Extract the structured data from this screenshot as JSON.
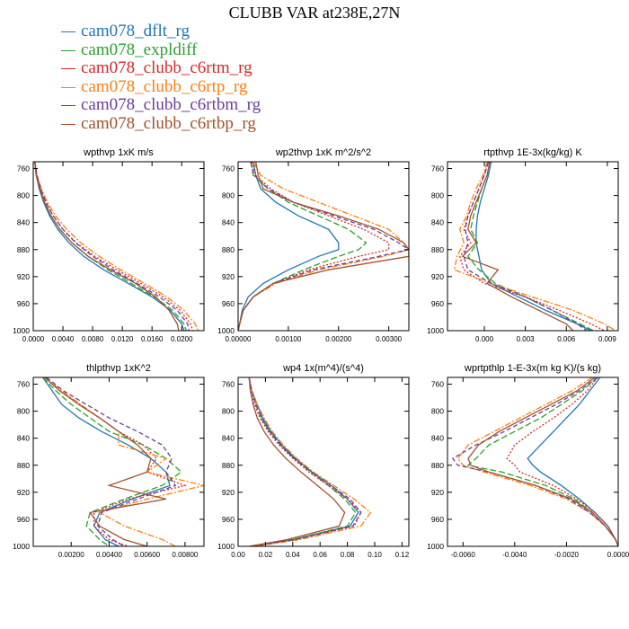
{
  "title": "CLUBB VAR at238E,27N",
  "legend": [
    {
      "name": "cam078_dflt_rg",
      "color": "#1f77b4",
      "dash": "none"
    },
    {
      "name": "cam078_expldiff",
      "color": "#2ca02c",
      "dash": "7 3"
    },
    {
      "name": "cam078_clubb_c6rtm_rg",
      "color": "#d62728",
      "dash": "2 2"
    },
    {
      "name": "cam078_clubb_c6rtp_rg",
      "color": "#ff7f0e",
      "dash": "7 2 2 2"
    },
    {
      "name": "cam078_clubb_c6rtbm_rg",
      "color": "#6a3d9a",
      "dash": "5 3"
    },
    {
      "name": "cam078_clubb_c6rtbp_rg",
      "color": "#a0522d",
      "dash": "none"
    }
  ],
  "chart_data": [
    {
      "type": "line",
      "title": "wpthvp  1xK m/s",
      "xlim": [
        0,
        0.023
      ],
      "ylim": [
        1000,
        750
      ],
      "xticks": [
        0,
        0.004,
        0.008,
        0.012,
        0.016,
        0.02
      ],
      "xticklabels": [
        "0.0000",
        "0.0040",
        "0.0080",
        "0.0120",
        "0.0160",
        "0.0200"
      ],
      "yticks": [
        760,
        800,
        840,
        880,
        920,
        960,
        1000
      ],
      "y": [
        750,
        770,
        790,
        810,
        830,
        850,
        870,
        890,
        910,
        930,
        950,
        970,
        990,
        1000
      ],
      "series": [
        {
          "name": "cam078_dflt_rg",
          "values": [
            0.0002,
            0.0004,
            0.0008,
            0.0014,
            0.0022,
            0.0033,
            0.0048,
            0.0068,
            0.0095,
            0.0128,
            0.016,
            0.0185,
            0.02,
            0.0203
          ]
        },
        {
          "name": "cam078_expldiff",
          "values": [
            0.0002,
            0.0004,
            0.0009,
            0.0015,
            0.0024,
            0.0036,
            0.0052,
            0.0074,
            0.0101,
            0.0132,
            0.0163,
            0.0188,
            0.0203,
            0.0206
          ]
        },
        {
          "name": "cam078_clubb_c6rtm_rg",
          "values": [
            0.0002,
            0.0005,
            0.001,
            0.0017,
            0.0027,
            0.004,
            0.0058,
            0.0083,
            0.0113,
            0.0145,
            0.0175,
            0.0198,
            0.0212,
            0.0215
          ]
        },
        {
          "name": "cam078_clubb_c6rtp_rg",
          "values": [
            0.0002,
            0.0005,
            0.0011,
            0.0019,
            0.003,
            0.0045,
            0.0064,
            0.0089,
            0.0118,
            0.015,
            0.018,
            0.0203,
            0.0218,
            0.0222
          ]
        },
        {
          "name": "cam078_clubb_c6rtbm_rg",
          "values": [
            0.0002,
            0.0005,
            0.001,
            0.0017,
            0.0027,
            0.004,
            0.0057,
            0.008,
            0.0108,
            0.014,
            0.017,
            0.0194,
            0.0208,
            0.021
          ]
        },
        {
          "name": "cam078_clubb_c6rtbp_rg",
          "values": [
            0.0002,
            0.0004,
            0.0009,
            0.0015,
            0.0024,
            0.0036,
            0.0052,
            0.0074,
            0.0104,
            0.0138,
            0.0165,
            0.0183,
            0.0194,
            0.0196
          ]
        }
      ]
    },
    {
      "type": "line",
      "title": "wp2thvp  1xK m^2/s^2",
      "xlim": [
        0,
        0.0034
      ],
      "ylim": [
        1000,
        750
      ],
      "xticks": [
        0,
        0.001,
        0.002,
        0.003
      ],
      "xticklabels": [
        "0.00000",
        "0.00100",
        "0.00200",
        "0.00300"
      ],
      "yticks": [
        760,
        800,
        840,
        880,
        920,
        960,
        1000
      ],
      "y": [
        750,
        770,
        790,
        810,
        830,
        850,
        870,
        880,
        890,
        910,
        930,
        950,
        970,
        990,
        1000
      ],
      "series": [
        {
          "name": "cam078_dflt_rg",
          "values": [
            0.0003,
            0.00035,
            0.00045,
            0.00075,
            0.0012,
            0.0018,
            0.002,
            0.002,
            0.0016,
            0.001,
            0.0005,
            0.0002,
            8e-05,
            3e-05,
            0.0
          ]
        },
        {
          "name": "cam078_expldiff",
          "values": [
            0.00025,
            0.0003,
            0.0006,
            0.001,
            0.0016,
            0.0022,
            0.00255,
            0.0024,
            0.002,
            0.0013,
            0.0007,
            0.0003,
            0.0001,
            3e-05,
            0.0
          ]
        },
        {
          "name": "cam078_clubb_c6rtm_rg",
          "values": [
            0.00028,
            0.00035,
            0.00065,
            0.0011,
            0.0018,
            0.0025,
            0.003,
            0.003,
            0.0024,
            0.0014,
            0.0007,
            0.0003,
            0.0001,
            3e-05,
            0.0
          ]
        },
        {
          "name": "cam078_clubb_c6rtp_rg",
          "values": [
            0.0003,
            0.00045,
            0.0009,
            0.0016,
            0.0023,
            0.003,
            0.0033,
            0.0034,
            0.0029,
            0.0016,
            0.00075,
            0.0003,
            0.0001,
            3e-05,
            0.0
          ]
        },
        {
          "name": "cam078_clubb_c6rtbm_rg",
          "values": [
            0.00025,
            0.00032,
            0.0006,
            0.0011,
            0.0019,
            0.0027,
            0.0032,
            0.0034,
            0.0028,
            0.0015,
            0.0007,
            0.0003,
            0.0001,
            3e-05,
            0.0
          ]
        },
        {
          "name": "cam078_clubb_c6rtbp_rg",
          "values": [
            0.00035,
            0.0004,
            0.0005,
            0.0011,
            0.002,
            0.0028,
            0.0033,
            0.0034,
            0.0034,
            0.0018,
            0.0007,
            0.0003,
            0.0001,
            3e-05,
            0.0
          ]
        }
      ]
    },
    {
      "type": "line",
      "title": "rtpthvp  1E-3x(kg/kg) K",
      "xlim": [
        -0.0027,
        0.0098
      ],
      "ylim": [
        1000,
        750
      ],
      "xticks": [
        0,
        0.003,
        0.006,
        0.009
      ],
      "xticklabels": [
        "0.000",
        "0.003",
        "0.006",
        "0.009"
      ],
      "yticks": [
        760,
        800,
        840,
        880,
        920,
        960,
        1000
      ],
      "y": [
        750,
        770,
        790,
        810,
        830,
        850,
        870,
        890,
        910,
        930,
        950,
        970,
        990,
        1000
      ],
      "series": [
        {
          "name": "cam078_dflt_rg",
          "values": [
            0.0005,
            0.0003,
            0.0,
            -0.0003,
            -0.0005,
            -0.0006,
            -0.0006,
            -0.0004,
            -0.0002,
            0.0005,
            0.0025,
            0.0045,
            0.0068,
            0.0078
          ]
        },
        {
          "name": "cam078_expldiff",
          "values": [
            0.0004,
            0.0002,
            -0.0002,
            -0.0005,
            -0.0008,
            -0.001,
            -0.0005,
            -0.0012,
            -0.0004,
            0.0008,
            0.003,
            0.005,
            0.007,
            0.008
          ]
        },
        {
          "name": "cam078_clubb_c6rtm_rg",
          "values": [
            0.0003,
            0.0,
            -0.0004,
            -0.0008,
            -0.0012,
            -0.0015,
            -0.001,
            -0.0018,
            -0.0015,
            0.0,
            0.003,
            0.0055,
            0.0078,
            0.0088
          ]
        },
        {
          "name": "cam078_clubb_c6rtp_rg",
          "values": [
            0.0002,
            -0.0001,
            -0.0006,
            -0.001,
            -0.0013,
            -0.0018,
            -0.0015,
            -0.002,
            -0.0022,
            0.0005,
            0.0035,
            0.0065,
            0.0088,
            0.0096
          ]
        },
        {
          "name": "cam078_clubb_c6rtbm_rg",
          "values": [
            0.0003,
            0.0,
            -0.0004,
            -0.0008,
            -0.0012,
            -0.0014,
            -0.0012,
            -0.0015,
            -0.0012,
            0.0005,
            0.003,
            0.005,
            0.0068,
            0.0075
          ]
        },
        {
          "name": "cam078_clubb_c6rtbp_rg",
          "values": [
            0.0004,
            0.0002,
            -0.0002,
            -0.0006,
            -0.001,
            -0.0012,
            -0.0006,
            -0.0016,
            0.001,
            0.0002,
            0.002,
            0.004,
            0.006,
            0.0065
          ]
        }
      ]
    },
    {
      "type": "line",
      "title": "thlpthvp  1xK^2",
      "xlim": [
        0,
        0.009
      ],
      "ylim": [
        1000,
        750
      ],
      "xticks": [
        0.002,
        0.004,
        0.006,
        0.008
      ],
      "xticklabels": [
        "0.00200",
        "0.00400",
        "0.00600",
        "0.00800"
      ],
      "yticks": [
        760,
        800,
        840,
        880,
        920,
        960,
        1000
      ],
      "y": [
        750,
        770,
        790,
        810,
        830,
        850,
        870,
        890,
        910,
        930,
        950,
        970,
        990,
        1000
      ],
      "series": [
        {
          "name": "cam078_dflt_rg",
          "values": [
            0.0005,
            0.001,
            0.0015,
            0.0024,
            0.0036,
            0.005,
            0.0062,
            0.007,
            0.0072,
            0.0052,
            0.0035,
            0.0032,
            0.0038,
            0.0045
          ]
        },
        {
          "name": "cam078_expldiff",
          "values": [
            0.0005,
            0.0012,
            0.002,
            0.003,
            0.004,
            0.0058,
            0.007,
            0.0078,
            0.0068,
            0.0048,
            0.003,
            0.0028,
            0.0035,
            0.004
          ]
        },
        {
          "name": "cam078_clubb_c6rtm_rg",
          "values": [
            0.0006,
            0.0014,
            0.0024,
            0.0035,
            0.0045,
            0.0058,
            0.0065,
            0.006,
            0.008,
            0.005,
            0.0032,
            0.0032,
            0.004,
            0.005
          ]
        },
        {
          "name": "cam078_clubb_c6rtp_rg",
          "values": [
            0.0006,
            0.0015,
            0.0025,
            0.0035,
            0.0045,
            0.0045,
            0.007,
            0.006,
            0.009,
            0.006,
            0.0035,
            0.0048,
            0.0068,
            0.0075
          ]
        },
        {
          "name": "cam078_clubb_c6rtbm_rg",
          "values": [
            0.0007,
            0.0016,
            0.0028,
            0.004,
            0.0055,
            0.0068,
            0.0073,
            0.007,
            0.0075,
            0.0055,
            0.0036,
            0.0034,
            0.0042,
            0.0048
          ]
        },
        {
          "name": "cam078_clubb_c6rtbp_rg",
          "values": [
            0.0006,
            0.0014,
            0.0024,
            0.0035,
            0.0045,
            0.0055,
            0.0062,
            0.006,
            0.004,
            0.007,
            0.003,
            0.0035,
            0.0048,
            0.006
          ]
        }
      ]
    },
    {
      "type": "line",
      "title": "wp4  1x(m^4)/(s^4)",
      "xlim": [
        0,
        0.125
      ],
      "ylim": [
        1000,
        750
      ],
      "xticks": [
        0,
        0.02,
        0.04,
        0.06,
        0.08,
        0.1,
        0.12
      ],
      "xticklabels": [
        "0.00",
        "0.02",
        "0.04",
        "0.06",
        "0.08",
        "0.10",
        "0.12"
      ],
      "yticks": [
        760,
        800,
        840,
        880,
        920,
        960,
        1000
      ],
      "y": [
        750,
        770,
        790,
        810,
        830,
        850,
        870,
        890,
        910,
        930,
        950,
        970,
        990,
        1000
      ],
      "series": [
        {
          "name": "cam078_dflt_rg",
          "values": [
            0.008,
            0.01,
            0.014,
            0.018,
            0.024,
            0.032,
            0.042,
            0.054,
            0.068,
            0.08,
            0.088,
            0.082,
            0.04,
            0.01
          ]
        },
        {
          "name": "cam078_expldiff",
          "values": [
            0.008,
            0.01,
            0.013,
            0.017,
            0.023,
            0.031,
            0.041,
            0.053,
            0.066,
            0.078,
            0.086,
            0.08,
            0.04,
            0.01
          ]
        },
        {
          "name": "cam078_clubb_c6rtm_rg",
          "values": [
            0.008,
            0.009,
            0.012,
            0.016,
            0.022,
            0.03,
            0.04,
            0.052,
            0.066,
            0.08,
            0.09,
            0.085,
            0.042,
            0.01
          ]
        },
        {
          "name": "cam078_clubb_c6rtp_rg",
          "values": [
            0.008,
            0.01,
            0.014,
            0.019,
            0.025,
            0.033,
            0.043,
            0.055,
            0.07,
            0.085,
            0.097,
            0.09,
            0.045,
            0.012
          ]
        },
        {
          "name": "cam078_clubb_c6rtbm_rg",
          "values": [
            0.008,
            0.01,
            0.013,
            0.017,
            0.023,
            0.031,
            0.041,
            0.054,
            0.068,
            0.082,
            0.09,
            0.084,
            0.042,
            0.01
          ]
        },
        {
          "name": "cam078_clubb_c6rtbp_rg",
          "values": [
            0.008,
            0.009,
            0.011,
            0.014,
            0.019,
            0.026,
            0.035,
            0.046,
            0.058,
            0.07,
            0.078,
            0.074,
            0.036,
            0.008
          ]
        }
      ]
    },
    {
      "type": "line",
      "title": "wprtpthlp  1-E-3x(m kg K)/(s kg)",
      "xlim": [
        -0.0066,
        0
      ],
      "ylim": [
        1000,
        750
      ],
      "xticks": [
        -0.006,
        -0.004,
        -0.002,
        0
      ],
      "xticklabels": [
        "-0.0060",
        "-0.0040",
        "-0.0020",
        "0.0000"
      ],
      "yticks": [
        760,
        800,
        840,
        880,
        920,
        960,
        1000
      ],
      "y": [
        750,
        770,
        790,
        810,
        830,
        850,
        870,
        880,
        890,
        910,
        930,
        950,
        970,
        990,
        1000
      ],
      "series": [
        {
          "name": "cam078_dflt_rg",
          "values": [
            -0.0007,
            -0.0011,
            -0.0015,
            -0.002,
            -0.0025,
            -0.003,
            -0.0035,
            -0.0033,
            -0.003,
            -0.0022,
            -0.0015,
            -0.0009,
            -0.0004,
            -0.0001,
            0.0
          ]
        },
        {
          "name": "cam078_expldiff",
          "values": [
            -0.0008,
            -0.0014,
            -0.0022,
            -0.003,
            -0.004,
            -0.005,
            -0.0055,
            -0.0058,
            -0.0045,
            -0.0028,
            -0.0017,
            -0.001,
            -0.0005,
            -0.0001,
            0.0
          ]
        },
        {
          "name": "cam078_clubb_c6rtm_rg",
          "values": [
            -0.0008,
            -0.0012,
            -0.0018,
            -0.0025,
            -0.0033,
            -0.004,
            -0.0043,
            -0.004,
            -0.0038,
            -0.0025,
            -0.0016,
            -0.0009,
            -0.0004,
            -0.0001,
            0.0
          ]
        },
        {
          "name": "cam078_clubb_c6rtp_rg",
          "values": [
            -0.001,
            -0.0018,
            -0.0028,
            -0.0038,
            -0.0048,
            -0.0058,
            -0.0062,
            -0.006,
            -0.0052,
            -0.0034,
            -0.002,
            -0.0011,
            -0.0005,
            -0.0001,
            0.0
          ]
        },
        {
          "name": "cam078_clubb_c6rtbm_rg",
          "values": [
            -0.0008,
            -0.0015,
            -0.0024,
            -0.0034,
            -0.0044,
            -0.0055,
            -0.0064,
            -0.0062,
            -0.005,
            -0.0032,
            -0.0019,
            -0.0011,
            -0.0005,
            -0.0001,
            0.0
          ]
        },
        {
          "name": "cam078_clubb_c6rtbp_rg",
          "values": [
            -0.0009,
            -0.0016,
            -0.0026,
            -0.0036,
            -0.0046,
            -0.0054,
            -0.0058,
            -0.0057,
            -0.005,
            -0.0032,
            -0.0018,
            -0.001,
            -0.0005,
            -0.0001,
            0.0
          ]
        }
      ]
    }
  ]
}
